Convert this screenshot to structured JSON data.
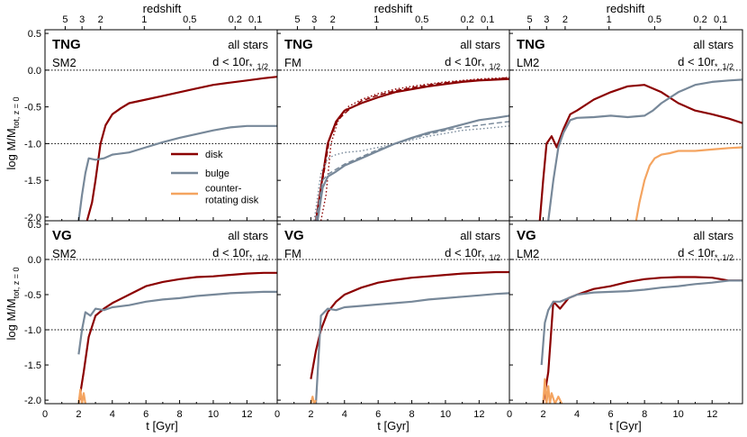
{
  "figure": {
    "top_axis_label": "redshift",
    "x_axis_label": "t [Gyr]",
    "y_axis_label_main": "log M/M",
    "y_axis_label_sub": "tot, z = 0",
    "region_line1": "all stars",
    "region_line2_main": "d < 10r",
    "region_line2_sub": "*, 1/2"
  },
  "chart_data": [
    {
      "type": "line",
      "title": "TNG",
      "subtitle": "SM2",
      "xlim": [
        0,
        13.8
      ],
      "ylim": [
        -2.05,
        0.55
      ],
      "x_ticks": [
        0,
        2,
        4,
        6,
        8,
        10,
        12
      ],
      "y_ticks": [
        0.5,
        0.0,
        -0.5,
        -1.0,
        -1.5,
        -2.0
      ],
      "y_tick_labels": [
        "0.5",
        "0.0",
        "-0.5",
        "-1.0",
        "-1.5",
        "-2.0"
      ],
      "redshift_ticks": [
        5,
        3,
        2,
        1,
        0.5,
        0.2,
        0.1
      ],
      "redshift_tick_labels": [
        "5",
        "3",
        "2",
        "1",
        "0.5",
        "0.2",
        "0.1"
      ],
      "redshift_tick_t": [
        1.2,
        2.2,
        3.3,
        5.9,
        8.6,
        11.3,
        12.5
      ],
      "hlines": [
        0.0,
        -1.0
      ],
      "legend": {
        "position": "center-right",
        "entries": [
          "disk",
          "bulge",
          "counter-\nrotating disk"
        ]
      },
      "series": [
        {
          "name": "disk",
          "color": "#8b0000",
          "x": [
            2.5,
            2.8,
            3.0,
            3.3,
            3.6,
            4.0,
            4.5,
            5.0,
            6.0,
            7.0,
            8.0,
            9.0,
            10.0,
            11.0,
            12.0,
            13.0,
            13.8
          ],
          "y": [
            -2.05,
            -1.8,
            -1.5,
            -1.0,
            -0.75,
            -0.6,
            -0.52,
            -0.45,
            -0.4,
            -0.35,
            -0.3,
            -0.25,
            -0.2,
            -0.17,
            -0.14,
            -0.11,
            -0.09
          ]
        },
        {
          "name": "bulge",
          "color": "#778899",
          "x": [
            2.0,
            2.2,
            2.4,
            2.6,
            3.0,
            3.5,
            4.0,
            5.0,
            6.0,
            7.0,
            8.0,
            9.0,
            10.0,
            11.0,
            12.0,
            13.0,
            13.8
          ],
          "y": [
            -2.05,
            -1.7,
            -1.4,
            -1.2,
            -1.22,
            -1.2,
            -1.15,
            -1.12,
            -1.05,
            -0.98,
            -0.92,
            -0.87,
            -0.82,
            -0.78,
            -0.76,
            -0.76,
            -0.76
          ]
        }
      ]
    },
    {
      "type": "line",
      "title": "TNG",
      "subtitle": "FM",
      "xlim": [
        0,
        13.8
      ],
      "ylim": [
        -2.05,
        0.55
      ],
      "x_ticks": [
        0,
        2,
        4,
        6,
        8,
        10,
        12
      ],
      "y_ticks": [
        0.5,
        0.0,
        -0.5,
        -1.0,
        -1.5,
        -2.0
      ],
      "redshift_ticks": [
        5,
        3,
        2,
        1,
        0.5,
        0.2,
        0.1
      ],
      "redshift_tick_labels": [
        "5",
        "3",
        "2",
        "1",
        "0.5",
        "0.2",
        "0.1"
      ],
      "redshift_tick_t": [
        1.2,
        2.2,
        3.3,
        5.9,
        8.6,
        11.3,
        12.5
      ],
      "hlines": [
        0.0,
        -1.0
      ],
      "series": [
        {
          "name": "disk",
          "color": "#8b0000",
          "style": "solid",
          "x": [
            2.3,
            2.6,
            3.0,
            3.5,
            4.0,
            5.0,
            6.0,
            7.0,
            8.0,
            9.0,
            10.0,
            11.0,
            12.0,
            13.0,
            13.8
          ],
          "y": [
            -2.05,
            -1.6,
            -1.0,
            -0.7,
            -0.55,
            -0.45,
            -0.37,
            -0.3,
            -0.26,
            -0.22,
            -0.19,
            -0.16,
            -0.14,
            -0.13,
            -0.12
          ]
        },
        {
          "name": "",
          "color": "#8b0000",
          "style": "dashed",
          "x": [
            2.3,
            2.7,
            3.1,
            3.6,
            4.2,
            5.0,
            6.0,
            7.0,
            8.0,
            9.0,
            10.0,
            11.0,
            12.0,
            13.0,
            13.8
          ],
          "y": [
            -2.05,
            -1.5,
            -0.95,
            -0.68,
            -0.55,
            -0.42,
            -0.34,
            -0.28,
            -0.24,
            -0.2,
            -0.17,
            -0.15,
            -0.13,
            -0.12,
            -0.1
          ]
        },
        {
          "name": "",
          "color": "#8b0000",
          "style": "dotted",
          "x": [
            2.6,
            2.9,
            3.2,
            3.6,
            4.2,
            5.0,
            6.0,
            7.0,
            8.0,
            9.0,
            10.0,
            11.0,
            12.0,
            13.0,
            13.8
          ],
          "y": [
            -2.05,
            -1.7,
            -1.0,
            -0.7,
            -0.5,
            -0.4,
            -0.32,
            -0.26,
            -0.22,
            -0.19,
            -0.16,
            -0.14,
            -0.12,
            -0.11,
            -0.1
          ]
        },
        {
          "name": "bulge",
          "color": "#778899",
          "style": "solid",
          "x": [
            2.4,
            2.7,
            3.0,
            3.5,
            4.0,
            5.0,
            6.0,
            7.0,
            8.0,
            9.0,
            10.0,
            11.0,
            12.0,
            13.0,
            13.8
          ],
          "y": [
            -2.05,
            -1.6,
            -1.45,
            -1.38,
            -1.3,
            -1.2,
            -1.1,
            -1.0,
            -0.92,
            -0.85,
            -0.8,
            -0.74,
            -0.68,
            -0.65,
            -0.62
          ]
        },
        {
          "name": "",
          "color": "#778899",
          "style": "dashed",
          "x": [
            2.3,
            2.7,
            3.0,
            3.5,
            4.0,
            5.0,
            6.0,
            7.0,
            8.0,
            9.0,
            10.0,
            11.0,
            12.0,
            13.0,
            13.8
          ],
          "y": [
            -2.05,
            -1.5,
            -1.42,
            -1.35,
            -1.28,
            -1.18,
            -1.08,
            -1.0,
            -0.93,
            -0.87,
            -0.82,
            -0.78,
            -0.75,
            -0.72,
            -0.7
          ]
        },
        {
          "name": "",
          "color": "#778899",
          "style": "dotted",
          "x": [
            2.2,
            2.6,
            3.0,
            3.5,
            4.0,
            5.0,
            6.0,
            7.0,
            8.0,
            9.0,
            10.0,
            11.0,
            12.0,
            13.0,
            13.8
          ],
          "y": [
            -2.05,
            -1.4,
            -1.2,
            -1.15,
            -1.12,
            -1.1,
            -1.05,
            -1.0,
            -0.95,
            -0.9,
            -0.86,
            -0.82,
            -0.8,
            -0.78,
            -0.76
          ]
        }
      ]
    },
    {
      "type": "line",
      "title": "TNG",
      "subtitle": "LM2",
      "xlim": [
        0,
        13.8
      ],
      "ylim": [
        -2.05,
        0.55
      ],
      "x_ticks": [
        0,
        2,
        4,
        6,
        8,
        10,
        12
      ],
      "y_ticks": [
        0.5,
        0.0,
        -0.5,
        -1.0,
        -1.5,
        -2.0
      ],
      "redshift_ticks": [
        5,
        3,
        2,
        1,
        0.5,
        0.2,
        0.1
      ],
      "redshift_tick_labels": [
        "5",
        "3",
        "2",
        "1",
        "0.5",
        "0.2",
        "0.1"
      ],
      "redshift_tick_t": [
        1.2,
        2.2,
        3.3,
        5.9,
        8.6,
        11.3,
        12.5
      ],
      "hlines": [
        0.0,
        -1.0
      ],
      "series": [
        {
          "name": "disk",
          "color": "#8b0000",
          "x": [
            1.8,
            2.0,
            2.2,
            2.5,
            2.8,
            3.2,
            3.6,
            4.0,
            5.0,
            6.0,
            7.0,
            8.0,
            9.0,
            10.0,
            11.0,
            12.0,
            13.0,
            13.8
          ],
          "y": [
            -2.05,
            -1.5,
            -1.0,
            -0.9,
            -1.05,
            -0.8,
            -0.6,
            -0.55,
            -0.4,
            -0.3,
            -0.22,
            -0.2,
            -0.3,
            -0.45,
            -0.55,
            -0.6,
            -0.66,
            -0.72
          ]
        },
        {
          "name": "bulge",
          "color": "#778899",
          "x": [
            2.3,
            2.6,
            2.9,
            3.2,
            3.6,
            4.0,
            5.0,
            6.0,
            7.0,
            8.0,
            8.5,
            9.0,
            10.0,
            11.0,
            12.0,
            13.0,
            13.8
          ],
          "y": [
            -2.05,
            -1.5,
            -1.05,
            -0.85,
            -0.68,
            -0.65,
            -0.64,
            -0.62,
            -0.64,
            -0.62,
            -0.55,
            -0.45,
            -0.3,
            -0.2,
            -0.16,
            -0.14,
            -0.13
          ]
        },
        {
          "name": "counter-rotating disk",
          "color": "#f4a460",
          "x": [
            7.5,
            7.7,
            8.0,
            8.3,
            8.6,
            9.0,
            9.5,
            10.0,
            11.0,
            12.0,
            13.0,
            13.8
          ],
          "y": [
            -2.05,
            -1.8,
            -1.5,
            -1.3,
            -1.2,
            -1.15,
            -1.13,
            -1.1,
            -1.1,
            -1.08,
            -1.06,
            -1.05
          ]
        }
      ]
    },
    {
      "type": "line",
      "title": "VG",
      "subtitle": "SM2",
      "xlim": [
        0,
        13.8
      ],
      "ylim": [
        -2.05,
        0.55
      ],
      "x_ticks": [
        0,
        2,
        4,
        6,
        8,
        10,
        12
      ],
      "x_tick_labels": [
        "0",
        "2",
        "4",
        "6",
        "8",
        "10",
        "12"
      ],
      "y_ticks": [
        0.5,
        0.0,
        -0.5,
        -1.0,
        -1.5,
        -2.0
      ],
      "y_tick_labels": [
        "0.5",
        "0.0",
        "-0.5",
        "-1.0",
        "-1.5",
        "-2.0"
      ],
      "hlines": [
        0.0,
        -1.0
      ],
      "series": [
        {
          "name": "disk",
          "color": "#8b0000",
          "x": [
            2.0,
            2.3,
            2.6,
            3.0,
            3.5,
            4.0,
            5.0,
            6.0,
            7.0,
            8.0,
            9.0,
            10.0,
            11.0,
            12.0,
            13.0,
            13.8
          ],
          "y": [
            -2.05,
            -1.6,
            -1.1,
            -0.8,
            -0.7,
            -0.62,
            -0.5,
            -0.38,
            -0.32,
            -0.28,
            -0.25,
            -0.24,
            -0.22,
            -0.2,
            -0.19,
            -0.19
          ]
        },
        {
          "name": "bulge",
          "color": "#778899",
          "x": [
            2.0,
            2.2,
            2.4,
            2.7,
            3.0,
            3.5,
            4.0,
            5.0,
            6.0,
            7.0,
            8.0,
            9.0,
            10.0,
            11.0,
            12.0,
            13.0,
            13.8
          ],
          "y": [
            -1.35,
            -1.0,
            -0.75,
            -0.8,
            -0.7,
            -0.72,
            -0.68,
            -0.65,
            -0.6,
            -0.57,
            -0.55,
            -0.52,
            -0.5,
            -0.48,
            -0.47,
            -0.46,
            -0.46
          ]
        },
        {
          "name": "counter-rotating disk",
          "color": "#f4a460",
          "x": [
            2.0,
            2.1,
            2.2,
            2.3,
            2.4
          ],
          "y": [
            -2.05,
            -1.85,
            -2.05,
            -1.9,
            -2.05
          ]
        }
      ]
    },
    {
      "type": "line",
      "title": "VG",
      "subtitle": "FM",
      "xlim": [
        0,
        13.8
      ],
      "ylim": [
        -2.05,
        0.55
      ],
      "x_ticks": [
        0,
        2,
        4,
        6,
        8,
        10,
        12
      ],
      "x_tick_labels": [
        "0",
        "2",
        "4",
        "6",
        "8",
        "10",
        "12"
      ],
      "y_ticks": [
        0.5,
        0.0,
        -0.5,
        -1.0,
        -1.5,
        -2.0
      ],
      "hlines": [
        0.0,
        -1.0
      ],
      "series": [
        {
          "name": "disk",
          "color": "#8b0000",
          "x": [
            2.0,
            2.3,
            2.6,
            3.0,
            3.5,
            4.0,
            5.0,
            6.0,
            7.0,
            8.0,
            9.0,
            10.0,
            11.0,
            12.0,
            13.0,
            13.8
          ],
          "y": [
            -1.7,
            -1.3,
            -1.0,
            -0.75,
            -0.6,
            -0.5,
            -0.4,
            -0.33,
            -0.29,
            -0.26,
            -0.24,
            -0.22,
            -0.2,
            -0.19,
            -0.18,
            -0.18
          ]
        },
        {
          "name": "bulge",
          "color": "#778899",
          "x": [
            2.3,
            2.6,
            3.0,
            3.5,
            4.0,
            5.0,
            6.0,
            7.0,
            8.0,
            9.0,
            10.0,
            11.0,
            12.0,
            13.0,
            13.8
          ],
          "y": [
            -2.05,
            -0.8,
            -0.7,
            -0.72,
            -0.68,
            -0.66,
            -0.64,
            -0.62,
            -0.6,
            -0.57,
            -0.55,
            -0.53,
            -0.51,
            -0.49,
            -0.48
          ]
        },
        {
          "name": "counter-rotating disk",
          "color": "#f4a460",
          "x": [
            2.0,
            2.1,
            2.2,
            2.3
          ],
          "y": [
            -2.05,
            -1.95,
            -2.05,
            -2.0
          ]
        }
      ]
    },
    {
      "type": "line",
      "title": "VG",
      "subtitle": "LM2",
      "xlim": [
        0,
        13.8
      ],
      "ylim": [
        -2.05,
        0.55
      ],
      "x_ticks": [
        0,
        2,
        4,
        6,
        8,
        10,
        12
      ],
      "x_tick_labels": [
        "0",
        "2",
        "4",
        "6",
        "8",
        "10",
        "12"
      ],
      "y_ticks": [
        0.5,
        0.0,
        -0.5,
        -1.0,
        -1.5,
        -2.0
      ],
      "hlines": [
        0.0,
        -1.0
      ],
      "series": [
        {
          "name": "disk",
          "color": "#8b0000",
          "x": [
            2.0,
            2.3,
            2.6,
            3.0,
            3.5,
            4.0,
            5.0,
            6.0,
            7.0,
            8.0,
            9.0,
            10.0,
            11.0,
            12.0,
            13.0,
            13.8
          ],
          "y": [
            -2.05,
            -1.6,
            -0.6,
            -0.7,
            -0.55,
            -0.5,
            -0.42,
            -0.38,
            -0.32,
            -0.28,
            -0.26,
            -0.25,
            -0.25,
            -0.26,
            -0.3,
            -0.3
          ]
        },
        {
          "name": "bulge",
          "color": "#778899",
          "x": [
            1.9,
            2.1,
            2.3,
            2.6,
            3.0,
            3.5,
            4.0,
            5.0,
            6.0,
            7.0,
            8.0,
            9.0,
            10.0,
            11.0,
            12.0,
            13.0,
            13.8
          ],
          "y": [
            -1.5,
            -0.9,
            -0.72,
            -0.6,
            -0.6,
            -0.55,
            -0.5,
            -0.47,
            -0.46,
            -0.45,
            -0.43,
            -0.4,
            -0.38,
            -0.35,
            -0.33,
            -0.3,
            -0.3
          ]
        },
        {
          "name": "counter-rotating disk",
          "color": "#f4a460",
          "x": [
            2.0,
            2.1,
            2.2,
            2.3,
            2.4,
            2.5,
            2.7,
            2.9,
            3.1
          ],
          "y": [
            -2.05,
            -1.7,
            -2.05,
            -1.8,
            -2.05,
            -1.9,
            -2.05,
            -1.95,
            -2.05
          ]
        }
      ]
    }
  ]
}
